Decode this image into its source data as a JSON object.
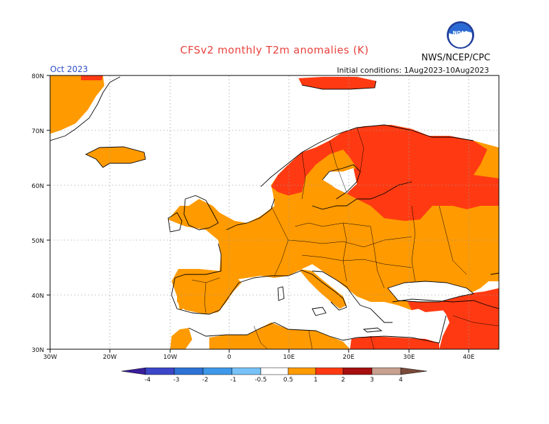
{
  "header": {
    "title": "CFSv2 monthly T2m anomalies (K)",
    "agency": "NWS/NCEP/CPC",
    "month": "Oct 2023",
    "initial_conditions": "Initial conditions: 1Aug2023-10Aug2023",
    "logo_text": "NOAA"
  },
  "axes": {
    "lat_labels": [
      "80N",
      "70N",
      "60N",
      "50N",
      "40N",
      "30N"
    ],
    "lon_labels": [
      "30W",
      "20W",
      "10W",
      "0",
      "10E",
      "20E",
      "30E",
      "40E"
    ]
  },
  "colorbar": {
    "labels": [
      "-4",
      "-3",
      "-2",
      "-1",
      "-0.5",
      "0.5",
      "1",
      "2",
      "3",
      "4"
    ],
    "colors": [
      "#3a1e9c",
      "#3c46c8",
      "#2e72d6",
      "#3e98ea",
      "#78c2f8",
      "#ffffff",
      "#ff9a00",
      "#ff3a12",
      "#a50f0f",
      "#c8a090",
      "#7a4a3a"
    ]
  },
  "colors": {
    "land_mild": "#ff9a00",
    "land_warm": "#ff3a12",
    "land_hot": "#e0261a",
    "coast": "#000000",
    "grid": "#999999"
  }
}
